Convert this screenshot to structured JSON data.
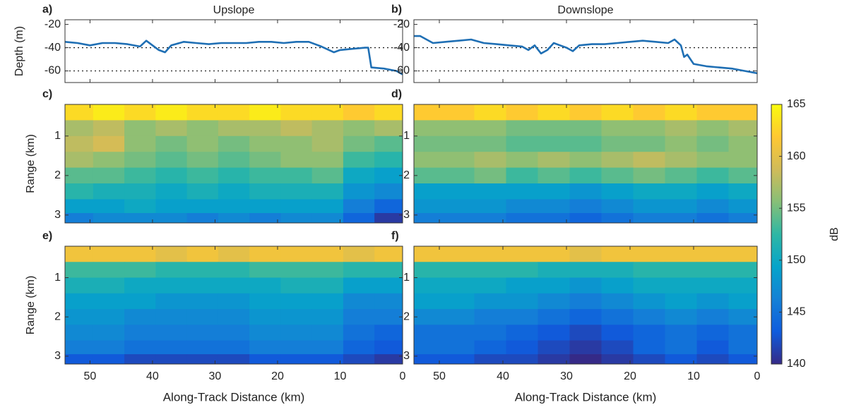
{
  "chart_data": [
    {
      "type": "line",
      "panel_label": "a)",
      "title": "Upslope",
      "ylabel": "Depth (m)",
      "color": "#1f6fb4",
      "x": [
        54,
        52,
        50,
        48,
        46,
        44,
        42,
        41,
        39,
        38,
        37,
        35,
        33,
        31,
        29,
        27,
        25,
        23,
        21,
        19,
        17,
        15,
        13,
        11,
        10,
        8,
        6,
        5.5,
        5,
        3,
        1,
        0
      ],
      "values": [
        -35,
        -36,
        -38,
        -36,
        -36,
        -37,
        -39,
        -34,
        -42,
        -44,
        -38,
        -35,
        -36,
        -37,
        -36,
        -36,
        -36,
        -35,
        -35,
        -36,
        -35,
        -35,
        -39,
        -44,
        -42,
        -41,
        -40,
        -40,
        -57,
        -58,
        -60,
        -63
      ],
      "xlim": [
        54,
        0
      ],
      "xticks": [
        50,
        40,
        30,
        20,
        10,
        0
      ],
      "show_xtick_labels": false,
      "ylim": [
        -70,
        -16
      ],
      "yticks": [
        -20,
        -40,
        -60
      ],
      "reference_lines": [
        -40,
        -60
      ]
    },
    {
      "type": "line",
      "panel_label": "b)",
      "title": "Downslope",
      "color": "#1f6fb4",
      "x": [
        54,
        53,
        51,
        49,
        47,
        45,
        43,
        41,
        39,
        37,
        36,
        35,
        34,
        33,
        32,
        31,
        30,
        29,
        28,
        26,
        24,
        22,
        20,
        18,
        16,
        14,
        13,
        12,
        11.5,
        11,
        10,
        8,
        6,
        4,
        2,
        0
      ],
      "values": [
        -30,
        -30,
        -36,
        -35,
        -34,
        -33,
        -36,
        -37,
        -38,
        -39,
        -42,
        -38,
        -45,
        -42,
        -36,
        -38,
        -40,
        -43,
        -38,
        -37,
        -37,
        -36,
        -35,
        -34,
        -35,
        -36,
        -33,
        -38,
        -48,
        -46,
        -54,
        -56,
        -57,
        -58,
        -60,
        -62
      ],
      "xlim": [
        54,
        0
      ],
      "xticks": [
        50,
        40,
        30,
        20,
        10,
        0
      ],
      "show_xtick_labels": false,
      "ylim": [
        -70,
        -16
      ],
      "yticks": [
        -20,
        -40,
        -60
      ],
      "reference_lines": [
        -40,
        -60
      ]
    },
    {
      "type": "heatmap",
      "panel_label": "c)",
      "ylabel": "Range (km)",
      "x": [
        52,
        47,
        42,
        37,
        32,
        27,
        22,
        17,
        12,
        7,
        2
      ],
      "y": [
        0.4,
        0.8,
        1.2,
        1.6,
        2.0,
        2.4,
        2.8,
        3.1
      ],
      "z": [
        [
          163,
          164,
          163,
          164,
          163,
          163,
          164,
          163,
          163,
          162,
          163
        ],
        [
          157,
          158,
          156,
          157,
          156,
          157,
          157,
          158,
          157,
          156,
          157
        ],
        [
          158,
          159,
          156,
          155,
          156,
          155,
          156,
          156,
          157,
          155,
          154
        ],
        [
          157,
          156,
          155,
          154,
          155,
          154,
          155,
          156,
          156,
          153,
          152
        ],
        [
          154,
          154,
          153,
          152,
          153,
          152,
          153,
          153,
          154,
          150,
          149
        ],
        [
          152,
          151,
          151,
          150,
          151,
          150,
          151,
          151,
          151,
          148,
          147
        ],
        [
          149,
          149,
          150,
          149,
          149,
          149,
          149,
          149,
          149,
          146,
          144
        ],
        [
          146,
          147,
          147,
          147,
          146,
          147,
          146,
          147,
          147,
          144,
          141
        ]
      ],
      "xlim": [
        54,
        0
      ],
      "xticks": [
        50,
        40,
        30,
        20,
        10,
        0
      ],
      "show_xtick_labels": false,
      "ylim": [
        0.2,
        3.2
      ],
      "y_reversed": true,
      "yticks": [
        1,
        2,
        3
      ]
    },
    {
      "type": "heatmap",
      "panel_label": "d)",
      "x": [
        52,
        47,
        42,
        37,
        32,
        27,
        22,
        17,
        12,
        7,
        2
      ],
      "y": [
        0.4,
        0.8,
        1.2,
        1.6,
        2.0,
        2.4,
        2.8,
        3.1
      ],
      "z": [
        [
          162,
          162,
          163,
          162,
          163,
          162,
          163,
          162,
          163,
          162,
          162
        ],
        [
          156,
          156,
          156,
          155,
          155,
          155,
          156,
          156,
          157,
          156,
          157
        ],
        [
          155,
          155,
          155,
          154,
          154,
          154,
          155,
          155,
          156,
          155,
          156
        ],
        [
          156,
          156,
          157,
          156,
          157,
          156,
          157,
          158,
          157,
          156,
          156
        ],
        [
          154,
          154,
          155,
          153,
          154,
          153,
          154,
          155,
          154,
          153,
          154
        ],
        [
          149,
          149,
          149,
          149,
          149,
          148,
          149,
          150,
          150,
          149,
          150
        ],
        [
          148,
          148,
          148,
          147,
          147,
          146,
          147,
          148,
          148,
          147,
          148
        ],
        [
          146,
          146,
          146,
          145,
          145,
          144,
          145,
          146,
          146,
          145,
          146
        ]
      ],
      "xlim": [
        54,
        0
      ],
      "xticks": [
        50,
        40,
        30,
        20,
        10,
        0
      ],
      "show_xtick_labels": false,
      "ylim": [
        0.2,
        3.2
      ],
      "y_reversed": true,
      "yticks": [
        1,
        2,
        3
      ]
    },
    {
      "type": "heatmap",
      "panel_label": "e)",
      "ylabel": "Range (km)",
      "xlabel": "Along-Track Distance (km)",
      "x": [
        52,
        47,
        42,
        37,
        32,
        27,
        22,
        17,
        12,
        7,
        2
      ],
      "y": [
        0.4,
        0.8,
        1.2,
        1.6,
        2.0,
        2.4,
        2.8,
        3.1
      ],
      "z": [
        [
          161,
          161,
          161,
          160,
          161,
          160,
          161,
          161,
          161,
          160,
          161
        ],
        [
          153,
          153,
          153,
          152,
          152,
          152,
          153,
          153,
          153,
          152,
          152
        ],
        [
          151,
          151,
          150,
          150,
          150,
          150,
          150,
          151,
          151,
          149,
          149
        ],
        [
          149,
          149,
          149,
          148,
          148,
          148,
          149,
          149,
          149,
          147,
          147
        ],
        [
          148,
          148,
          147,
          147,
          147,
          147,
          148,
          148,
          148,
          146,
          146
        ],
        [
          147,
          147,
          146,
          146,
          146,
          146,
          147,
          147,
          147,
          145,
          144
        ],
        [
          146,
          146,
          145,
          145,
          145,
          145,
          146,
          146,
          146,
          144,
          143
        ],
        [
          143,
          143,
          142,
          142,
          142,
          142,
          143,
          143,
          143,
          142,
          141
        ]
      ],
      "xlim": [
        54,
        0
      ],
      "xticks": [
        50,
        40,
        30,
        20,
        10,
        0
      ],
      "show_xtick_labels": true,
      "ylim": [
        0.2,
        3.2
      ],
      "y_reversed": true,
      "yticks": [
        1,
        2,
        3
      ]
    },
    {
      "type": "heatmap",
      "panel_label": "f)",
      "xlabel": "Along-Track Distance (km)",
      "x": [
        52,
        47,
        42,
        37,
        32,
        27,
        22,
        17,
        12,
        7,
        2
      ],
      "y": [
        0.4,
        0.8,
        1.2,
        1.6,
        2.0,
        2.4,
        2.8,
        3.1
      ],
      "z": [
        [
          161,
          161,
          161,
          161,
          161,
          160,
          161,
          161,
          161,
          161,
          161
        ],
        [
          152,
          152,
          152,
          152,
          151,
          151,
          151,
          152,
          152,
          152,
          152
        ],
        [
          150,
          150,
          150,
          149,
          149,
          148,
          149,
          150,
          150,
          150,
          150
        ],
        [
          149,
          149,
          148,
          148,
          147,
          146,
          147,
          148,
          149,
          148,
          149
        ],
        [
          147,
          147,
          146,
          146,
          145,
          144,
          145,
          146,
          147,
          146,
          147
        ],
        [
          145,
          145,
          145,
          144,
          143,
          142,
          143,
          144,
          145,
          144,
          145
        ],
        [
          145,
          145,
          144,
          143,
          142,
          141,
          142,
          144,
          145,
          143,
          145
        ],
        [
          143,
          143,
          142,
          142,
          141,
          140,
          141,
          142,
          143,
          142,
          143
        ]
      ],
      "xlim": [
        54,
        0
      ],
      "xticks": [
        50,
        40,
        30,
        20,
        10,
        0
      ],
      "show_xtick_labels": true,
      "ylim": [
        0.2,
        3.2
      ],
      "y_reversed": true,
      "yticks": [
        1,
        2,
        3
      ]
    }
  ],
  "colorbar": {
    "label": "dB",
    "lim": [
      140,
      165
    ],
    "ticks": [
      140,
      145,
      150,
      155,
      160,
      165
    ],
    "colors": [
      "#352a87",
      "#0f5cdd",
      "#1481d6",
      "#06a4ca",
      "#2eb7a4",
      "#87bf77",
      "#d1bb59",
      "#fec832",
      "#f9fb0e"
    ]
  }
}
